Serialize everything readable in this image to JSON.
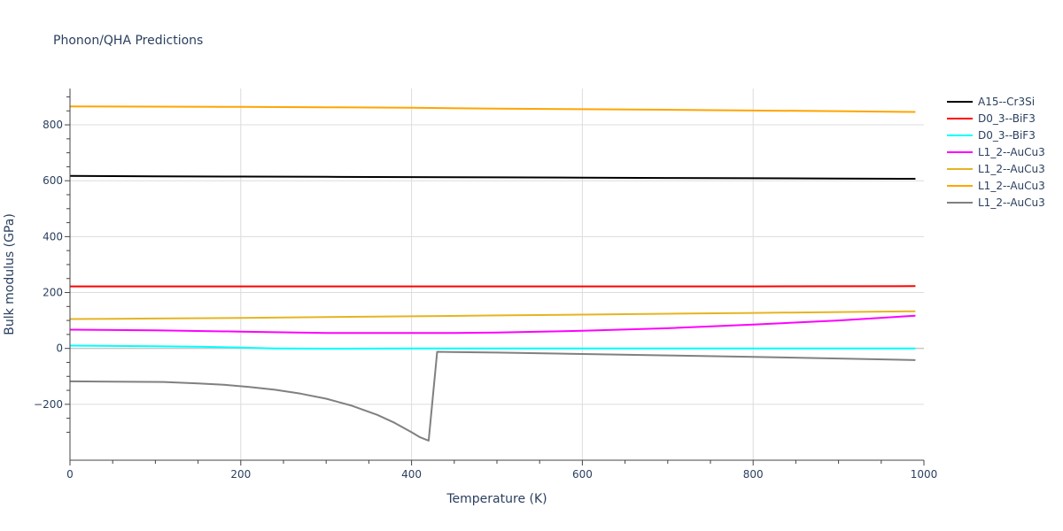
{
  "chart_data": {
    "type": "line",
    "title": "Phonon/QHA Predictions",
    "xlabel": "Temperature (K)",
    "ylabel": "Bulk modulus (GPa)",
    "xlim": [
      0,
      1000
    ],
    "ylim": [
      -400,
      930
    ],
    "xticks": [
      0,
      200,
      400,
      600,
      800,
      1000
    ],
    "yticks": [
      -200,
      0,
      200,
      400,
      600,
      800
    ],
    "xtick_labels": [
      "0",
      "200",
      "400",
      "600",
      "800",
      "1000"
    ],
    "ytick_labels": [
      "−200",
      "0",
      "200",
      "400",
      "600",
      "800"
    ],
    "grid": true,
    "legend_position": "top-right outside",
    "series": [
      {
        "name": "A15--Cr3Si",
        "color": "#000000",
        "x": [
          0,
          100,
          200,
          300,
          400,
          500,
          600,
          700,
          800,
          900,
          990
        ],
        "y": [
          617,
          616,
          615,
          614,
          613,
          612,
          611,
          610,
          609,
          608,
          607
        ]
      },
      {
        "name": "D0_3--BiF3",
        "color": "#ff0000",
        "x": [
          0,
          200,
          400,
          600,
          800,
          990
        ],
        "y": [
          222,
          222,
          222,
          222,
          222,
          223
        ]
      },
      {
        "name": "D0_3--BiF3",
        "color": "#00ffff",
        "x": [
          0,
          100,
          150,
          200,
          240,
          300,
          400,
          600,
          800,
          990
        ],
        "y": [
          10,
          8,
          6,
          3,
          0,
          -1,
          0,
          0,
          0,
          0
        ]
      },
      {
        "name": "L1_2--AuCu3",
        "color": "#ff00ff",
        "x": [
          0,
          100,
          200,
          300,
          400,
          450,
          500,
          600,
          700,
          800,
          900,
          990
        ],
        "y": [
          67,
          65,
          60,
          55,
          55,
          55,
          57,
          63,
          72,
          85,
          100,
          117
        ]
      },
      {
        "name": "L1_2--AuCu3",
        "color": "#e6b422",
        "x": [
          0,
          100,
          200,
          300,
          400,
          500,
          600,
          700,
          800,
          900,
          990
        ],
        "y": [
          105,
          107,
          109,
          112,
          115,
          118,
          121,
          124,
          127,
          130,
          133
        ]
      },
      {
        "name": "L1_2--AuCu3",
        "color": "#ffa500",
        "x": [
          0,
          100,
          200,
          300,
          400,
          500,
          600,
          700,
          800,
          900,
          990
        ],
        "y": [
          866,
          865,
          864,
          863,
          861,
          858,
          856,
          854,
          851,
          849,
          846
        ]
      },
      {
        "name": "L1_2--AuCu3",
        "color": "#808080",
        "x": [
          0,
          50,
          110,
          150,
          180,
          210,
          240,
          270,
          300,
          330,
          360,
          380,
          400,
          410,
          420,
          430,
          500,
          600,
          700,
          800,
          900,
          990
        ],
        "y": [
          -118,
          -119,
          -120,
          -125,
          -130,
          -138,
          -148,
          -162,
          -180,
          -205,
          -238,
          -266,
          -300,
          -318,
          -330,
          -12,
          -15,
          -20,
          -25,
          -30,
          -36,
          -42
        ]
      }
    ]
  }
}
